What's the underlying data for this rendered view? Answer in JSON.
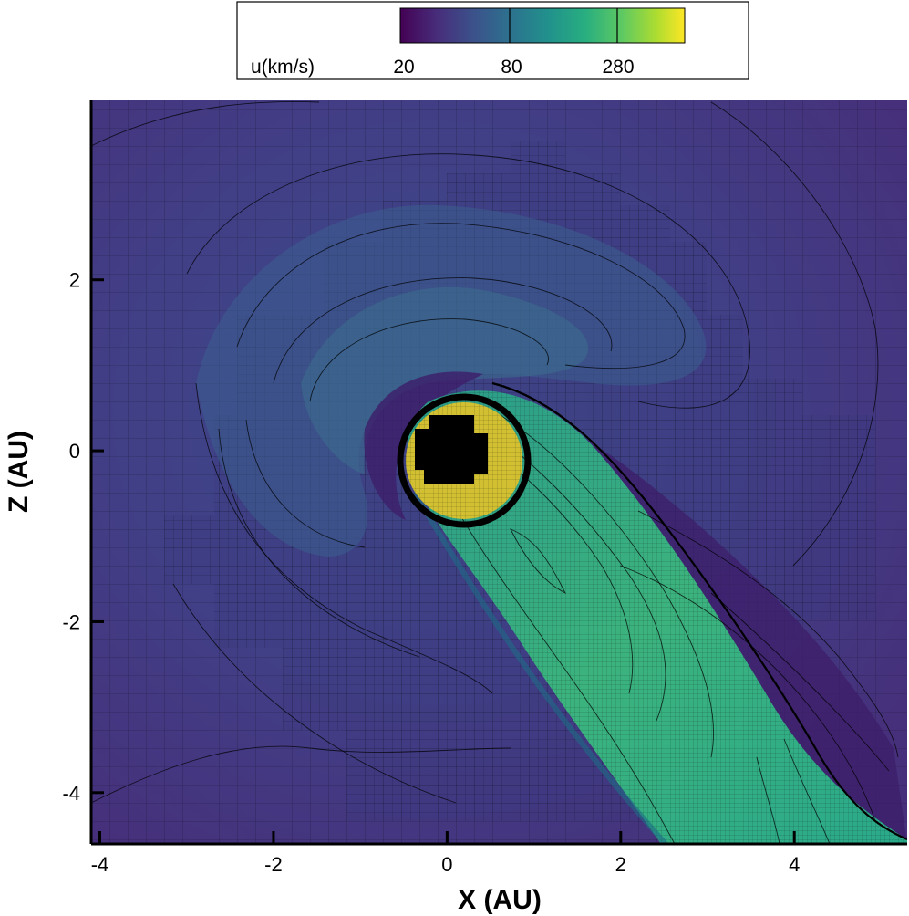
{
  "chart_data": {
    "type": "heatmap",
    "title": "",
    "xlabel": "X (AU)",
    "ylabel": "Z (AU)",
    "xlim": [
      -4.1,
      5.3
    ],
    "ylim": [
      -4.6,
      4.1
    ],
    "x_ticks": [
      -4,
      -2,
      0,
      2,
      4
    ],
    "x_tick_labels": [
      "-4",
      "-2",
      "0",
      "2",
      "4"
    ],
    "y_ticks": [
      -4,
      -2,
      0,
      2
    ],
    "y_tick_labels": [
      "-4",
      "-2",
      "0",
      "2"
    ],
    "colorbar": {
      "label": "u(km/s)",
      "ticks": [
        "20",
        "80",
        "280"
      ],
      "scale": "log",
      "colormap": "viridis",
      "placement": "top"
    },
    "features": {
      "inner_sphere_center": [
        0,
        0
      ],
      "inner_sphere_radius_au": 0.8,
      "inner_sphere_color": "#d2c032",
      "core_color": "#000000",
      "tail_direction": "lower-right",
      "tail_color": "#2fa586",
      "background_color": "#47307a",
      "mesh_overlay": true
    }
  }
}
